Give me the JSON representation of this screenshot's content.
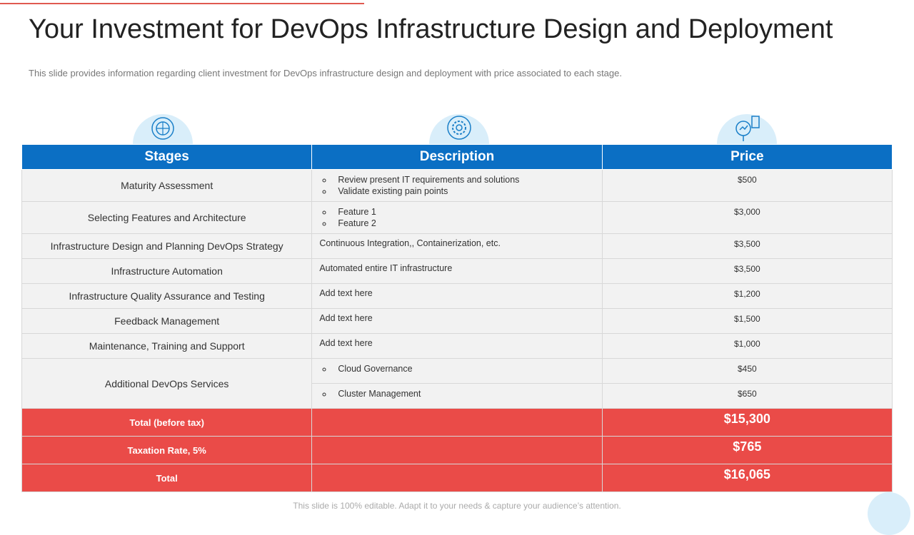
{
  "title": "Your Investment for DevOps Infrastructure Design and Deployment",
  "subtitle": "This slide provides information regarding client investment for DevOps infrastructure design and deployment with price associated to each stage.",
  "table": {
    "headers": [
      "Stages",
      "Description",
      "Price"
    ],
    "rows": [
      {
        "stage": "Maturity Assessment",
        "bullets": [
          "Review present IT requirements and solutions",
          "Validate existing pain points"
        ],
        "price": "$500"
      },
      {
        "stage": "Selecting Features and Architecture",
        "bullets": [
          "Feature 1",
          "Feature 2"
        ],
        "price": "$3,000"
      },
      {
        "stage": "Infrastructure Design and Planning DevOps Strategy",
        "text": "Continuous Integration,, Containerization, etc.",
        "price": "$3,500"
      },
      {
        "stage": "Infrastructure Automation",
        "text": "Automated entire IT infrastructure",
        "price": "$3,500"
      },
      {
        "stage": "Infrastructure Quality Assurance and Testing",
        "text": "Add text here",
        "price": "$1,200"
      },
      {
        "stage": "Feedback Management",
        "text": "Add text here",
        "price": "$1,500"
      },
      {
        "stage": "Maintenance, Training and Support",
        "text": "Add text here",
        "price": "$1,000"
      },
      {
        "stage": "Additional DevOps Services",
        "items": [
          {
            "bullet": "Cloud Governance",
            "price": "$450"
          },
          {
            "bullet": "Cluster Management",
            "price": "$650"
          }
        ]
      }
    ],
    "totals": [
      {
        "label": "Total (before tax)",
        "price": "$15,300"
      },
      {
        "label": "Taxation Rate, 5%",
        "price": "$765"
      },
      {
        "label": "Total",
        "price": "$16,065"
      }
    ]
  },
  "footer": "This slide is 100% editable. Adapt it to your needs & capture your audience’s attention."
}
